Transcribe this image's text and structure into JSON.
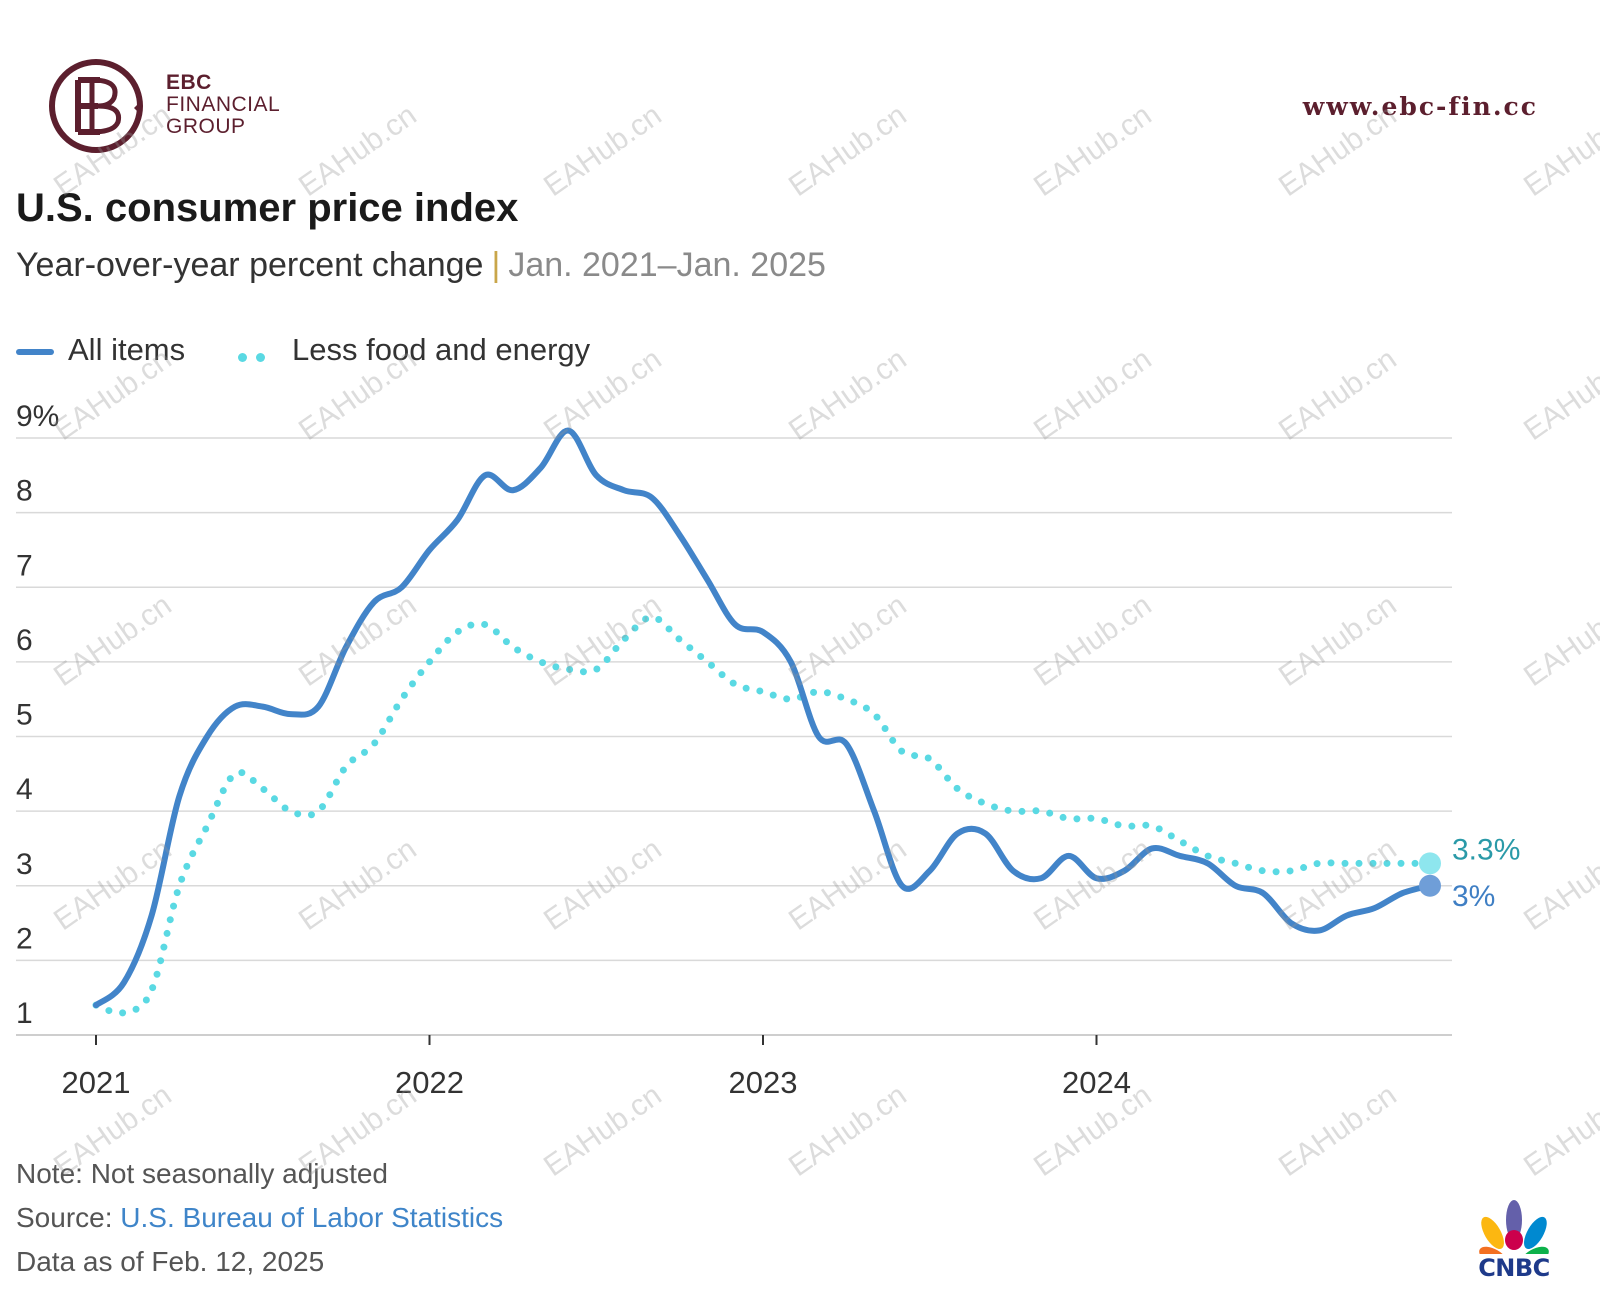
{
  "brand": {
    "line1": "EBC",
    "line2": "FINANCIAL",
    "line3": "GROUP",
    "url": "www.ebc-fin.cc",
    "color": "#5c1f2e"
  },
  "watermark": "EAHub.cn",
  "title": "U.S. consumer price index",
  "subtitle": {
    "main": "Year-over-year percent change",
    "separator": "|",
    "range": "Jan. 2021–Jan. 2025"
  },
  "chart_data": {
    "type": "line",
    "title": "U.S. consumer price index",
    "subtitle": "Year-over-year percent change | Jan. 2021–Jan. 2025",
    "xlabel": "",
    "ylabel": "",
    "ylim": [
      1,
      9
    ],
    "y_ticks": [
      "9%",
      "8",
      "7",
      "6",
      "5",
      "4",
      "3",
      "2",
      "1"
    ],
    "x_ticks": [
      "2021",
      "2022",
      "2023",
      "2024"
    ],
    "x_tick_values": [
      0,
      12,
      24,
      36
    ],
    "grid": true,
    "legend_position": "top-left",
    "x": [
      0,
      1,
      2,
      3,
      4,
      5,
      6,
      7,
      8,
      9,
      10,
      11,
      12,
      13,
      14,
      15,
      16,
      17,
      18,
      19,
      20,
      21,
      22,
      23,
      24,
      25,
      26,
      27,
      28,
      29,
      30,
      31,
      32,
      33,
      34,
      35,
      36,
      37,
      38,
      39,
      40,
      41,
      42,
      43,
      44,
      45,
      46,
      47,
      48
    ],
    "series": [
      {
        "name": "All items",
        "style": "solid",
        "color": "#4284c9",
        "values": [
          1.4,
          1.7,
          2.6,
          4.2,
          5.0,
          5.4,
          5.4,
          5.3,
          5.4,
          6.2,
          6.8,
          7.0,
          7.5,
          7.9,
          8.5,
          8.3,
          8.6,
          9.1,
          8.5,
          8.3,
          8.2,
          7.7,
          7.1,
          6.5,
          6.4,
          6.0,
          5.0,
          4.9,
          4.0,
          3.0,
          3.2,
          3.7,
          3.7,
          3.2,
          3.1,
          3.4,
          3.1,
          3.2,
          3.5,
          3.4,
          3.3,
          3.0,
          2.9,
          2.5,
          2.4,
          2.6,
          2.7,
          2.9,
          3.0
        ],
        "end_label": "3%"
      },
      {
        "name": "Less food and energy",
        "style": "dotted",
        "color": "#5ad9e3",
        "values": [
          1.4,
          1.3,
          1.6,
          3.0,
          3.8,
          4.5,
          4.3,
          4.0,
          4.0,
          4.6,
          4.9,
          5.5,
          6.0,
          6.4,
          6.5,
          6.2,
          6.0,
          5.9,
          5.9,
          6.3,
          6.6,
          6.3,
          6.0,
          5.7,
          5.6,
          5.5,
          5.6,
          5.5,
          5.3,
          4.8,
          4.7,
          4.3,
          4.1,
          4.0,
          4.0,
          3.9,
          3.9,
          3.8,
          3.8,
          3.6,
          3.4,
          3.3,
          3.2,
          3.2,
          3.3,
          3.3,
          3.3,
          3.3,
          3.3
        ],
        "end_label": "3.3%"
      }
    ]
  },
  "footer": {
    "note": "Note: Not seasonally adjusted",
    "source_label": "Source:",
    "source_name": "U.S. Bureau of Labor Statistics",
    "data_as_of": "Data as of Feb. 12, 2025"
  },
  "cnbc": {
    "text": "CNBC"
  }
}
